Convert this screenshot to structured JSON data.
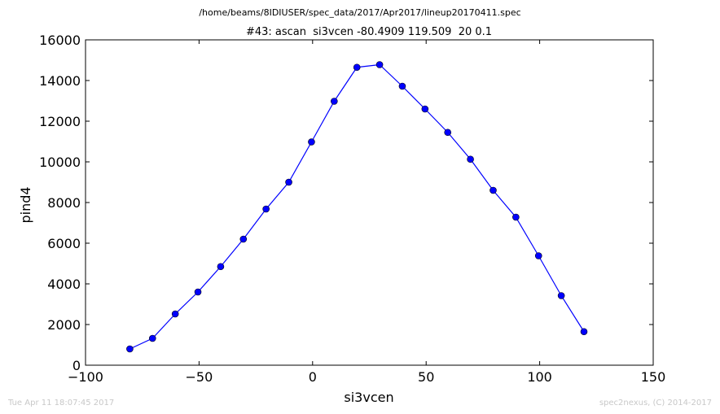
{
  "header": {
    "file_path": "/home/beams/8IDIUSER/spec_data/2017/Apr2017/lineup20170411.spec"
  },
  "footer": {
    "timestamp": "Tue Apr 11 18:07:45 2017",
    "credit": "spec2nexus, (C) 2014-2017"
  },
  "chart_data": {
    "type": "line",
    "title": "#43: ascan  si3vcen -80.4909 119.509  20 0.1",
    "xlabel": "si3vcen",
    "ylabel": "pind4",
    "xlim": [
      -100,
      150
    ],
    "ylim": [
      0,
      16000
    ],
    "xticks": [
      -100,
      -50,
      0,
      50,
      100,
      150
    ],
    "xtick_labels": [
      "−100",
      "−50",
      "0",
      "50",
      "100",
      "150"
    ],
    "yticks": [
      0,
      2000,
      4000,
      6000,
      8000,
      10000,
      12000,
      14000,
      16000
    ],
    "ytick_labels": [
      "0",
      "2000",
      "4000",
      "6000",
      "8000",
      "10000",
      "12000",
      "14000",
      "16000"
    ],
    "grid": false,
    "line_color": "#0000ff",
    "marker": "circle",
    "x": [
      -80.49,
      -70.49,
      -60.49,
      -50.49,
      -40.49,
      -30.49,
      -20.49,
      -10.49,
      -0.49,
      9.51,
      19.51,
      29.51,
      39.51,
      49.51,
      59.51,
      69.51,
      79.51,
      89.51,
      99.51,
      109.51,
      119.51
    ],
    "y": [
      800,
      1320,
      2520,
      3600,
      4850,
      6200,
      7680,
      9000,
      10980,
      12980,
      14650,
      14780,
      13720,
      12600,
      11450,
      10130,
      8600,
      7280,
      5380,
      3420,
      1650
    ]
  }
}
